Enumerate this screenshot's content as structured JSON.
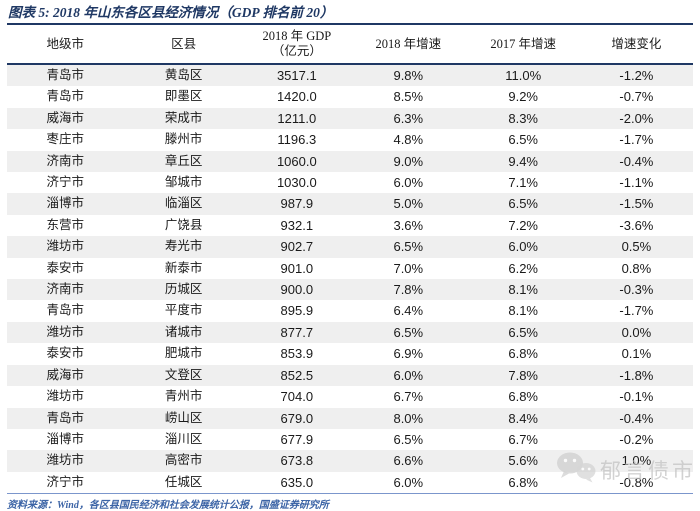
{
  "title": "图表 5: 2018 年山东各区县经济情况（GDP 排名前 20）",
  "header": {
    "city": "地级市",
    "district": "区县",
    "gdp_line1": "2018 年 GDP",
    "gdp_line2": "（亿元）",
    "growth_2018": "2018 年增速",
    "growth_2017": "2017 年增速",
    "change": "增速变化"
  },
  "chart_data": {
    "type": "table",
    "title": "2018 年山东各区县经济情况（GDP 排名前 20）",
    "columns": [
      "地级市",
      "区县",
      "2018 年 GDP（亿元）",
      "2018 年增速",
      "2017 年增速",
      "增速变化"
    ],
    "rows": [
      [
        "青岛市",
        "黄岛区",
        "3517.1",
        "9.8%",
        "11.0%",
        "-1.2%"
      ],
      [
        "青岛市",
        "即墨区",
        "1420.0",
        "8.5%",
        "9.2%",
        "-0.7%"
      ],
      [
        "威海市",
        "荣成市",
        "1211.0",
        "6.3%",
        "8.3%",
        "-2.0%"
      ],
      [
        "枣庄市",
        "滕州市",
        "1196.3",
        "4.8%",
        "6.5%",
        "-1.7%"
      ],
      [
        "济南市",
        "章丘区",
        "1060.0",
        "9.0%",
        "9.4%",
        "-0.4%"
      ],
      [
        "济宁市",
        "邹城市",
        "1030.0",
        "6.0%",
        "7.1%",
        "-1.1%"
      ],
      [
        "淄博市",
        "临淄区",
        "987.9",
        "5.0%",
        "6.5%",
        "-1.5%"
      ],
      [
        "东营市",
        "广饶县",
        "932.1",
        "3.6%",
        "7.2%",
        "-3.6%"
      ],
      [
        "潍坊市",
        "寿光市",
        "902.7",
        "6.5%",
        "6.0%",
        "0.5%"
      ],
      [
        "泰安市",
        "新泰市",
        "901.0",
        "7.0%",
        "6.2%",
        "0.8%"
      ],
      [
        "济南市",
        "历城区",
        "900.0",
        "7.8%",
        "8.1%",
        "-0.3%"
      ],
      [
        "青岛市",
        "平度市",
        "895.9",
        "6.4%",
        "8.1%",
        "-1.7%"
      ],
      [
        "潍坊市",
        "诸城市",
        "877.7",
        "6.5%",
        "6.5%",
        "0.0%"
      ],
      [
        "泰安市",
        "肥城市",
        "853.9",
        "6.9%",
        "6.8%",
        "0.1%"
      ],
      [
        "威海市",
        "文登区",
        "852.5",
        "6.0%",
        "7.8%",
        "-1.8%"
      ],
      [
        "潍坊市",
        "青州市",
        "704.0",
        "6.7%",
        "6.8%",
        "-0.1%"
      ],
      [
        "青岛市",
        "崂山区",
        "679.0",
        "8.0%",
        "8.4%",
        "-0.4%"
      ],
      [
        "淄博市",
        "淄川区",
        "677.9",
        "6.5%",
        "6.7%",
        "-0.2%"
      ],
      [
        "潍坊市",
        "高密市",
        "673.8",
        "6.6%",
        "5.6%",
        "1.0%"
      ],
      [
        "济宁市",
        "任城区",
        "635.0",
        "6.0%",
        "6.8%",
        "-0.8%"
      ]
    ]
  },
  "footer": {
    "source": "资料来源：Wind，各区县国民经济和社会发展统计公报，国盛证券研究所"
  },
  "watermark": {
    "text": "郁言债市"
  },
  "colors": {
    "title_navy": "#1F3864",
    "row_stripe": "#EFEFEF",
    "footer_blue": "#3C64A6",
    "watermark_gray": "#C4C4C4"
  }
}
